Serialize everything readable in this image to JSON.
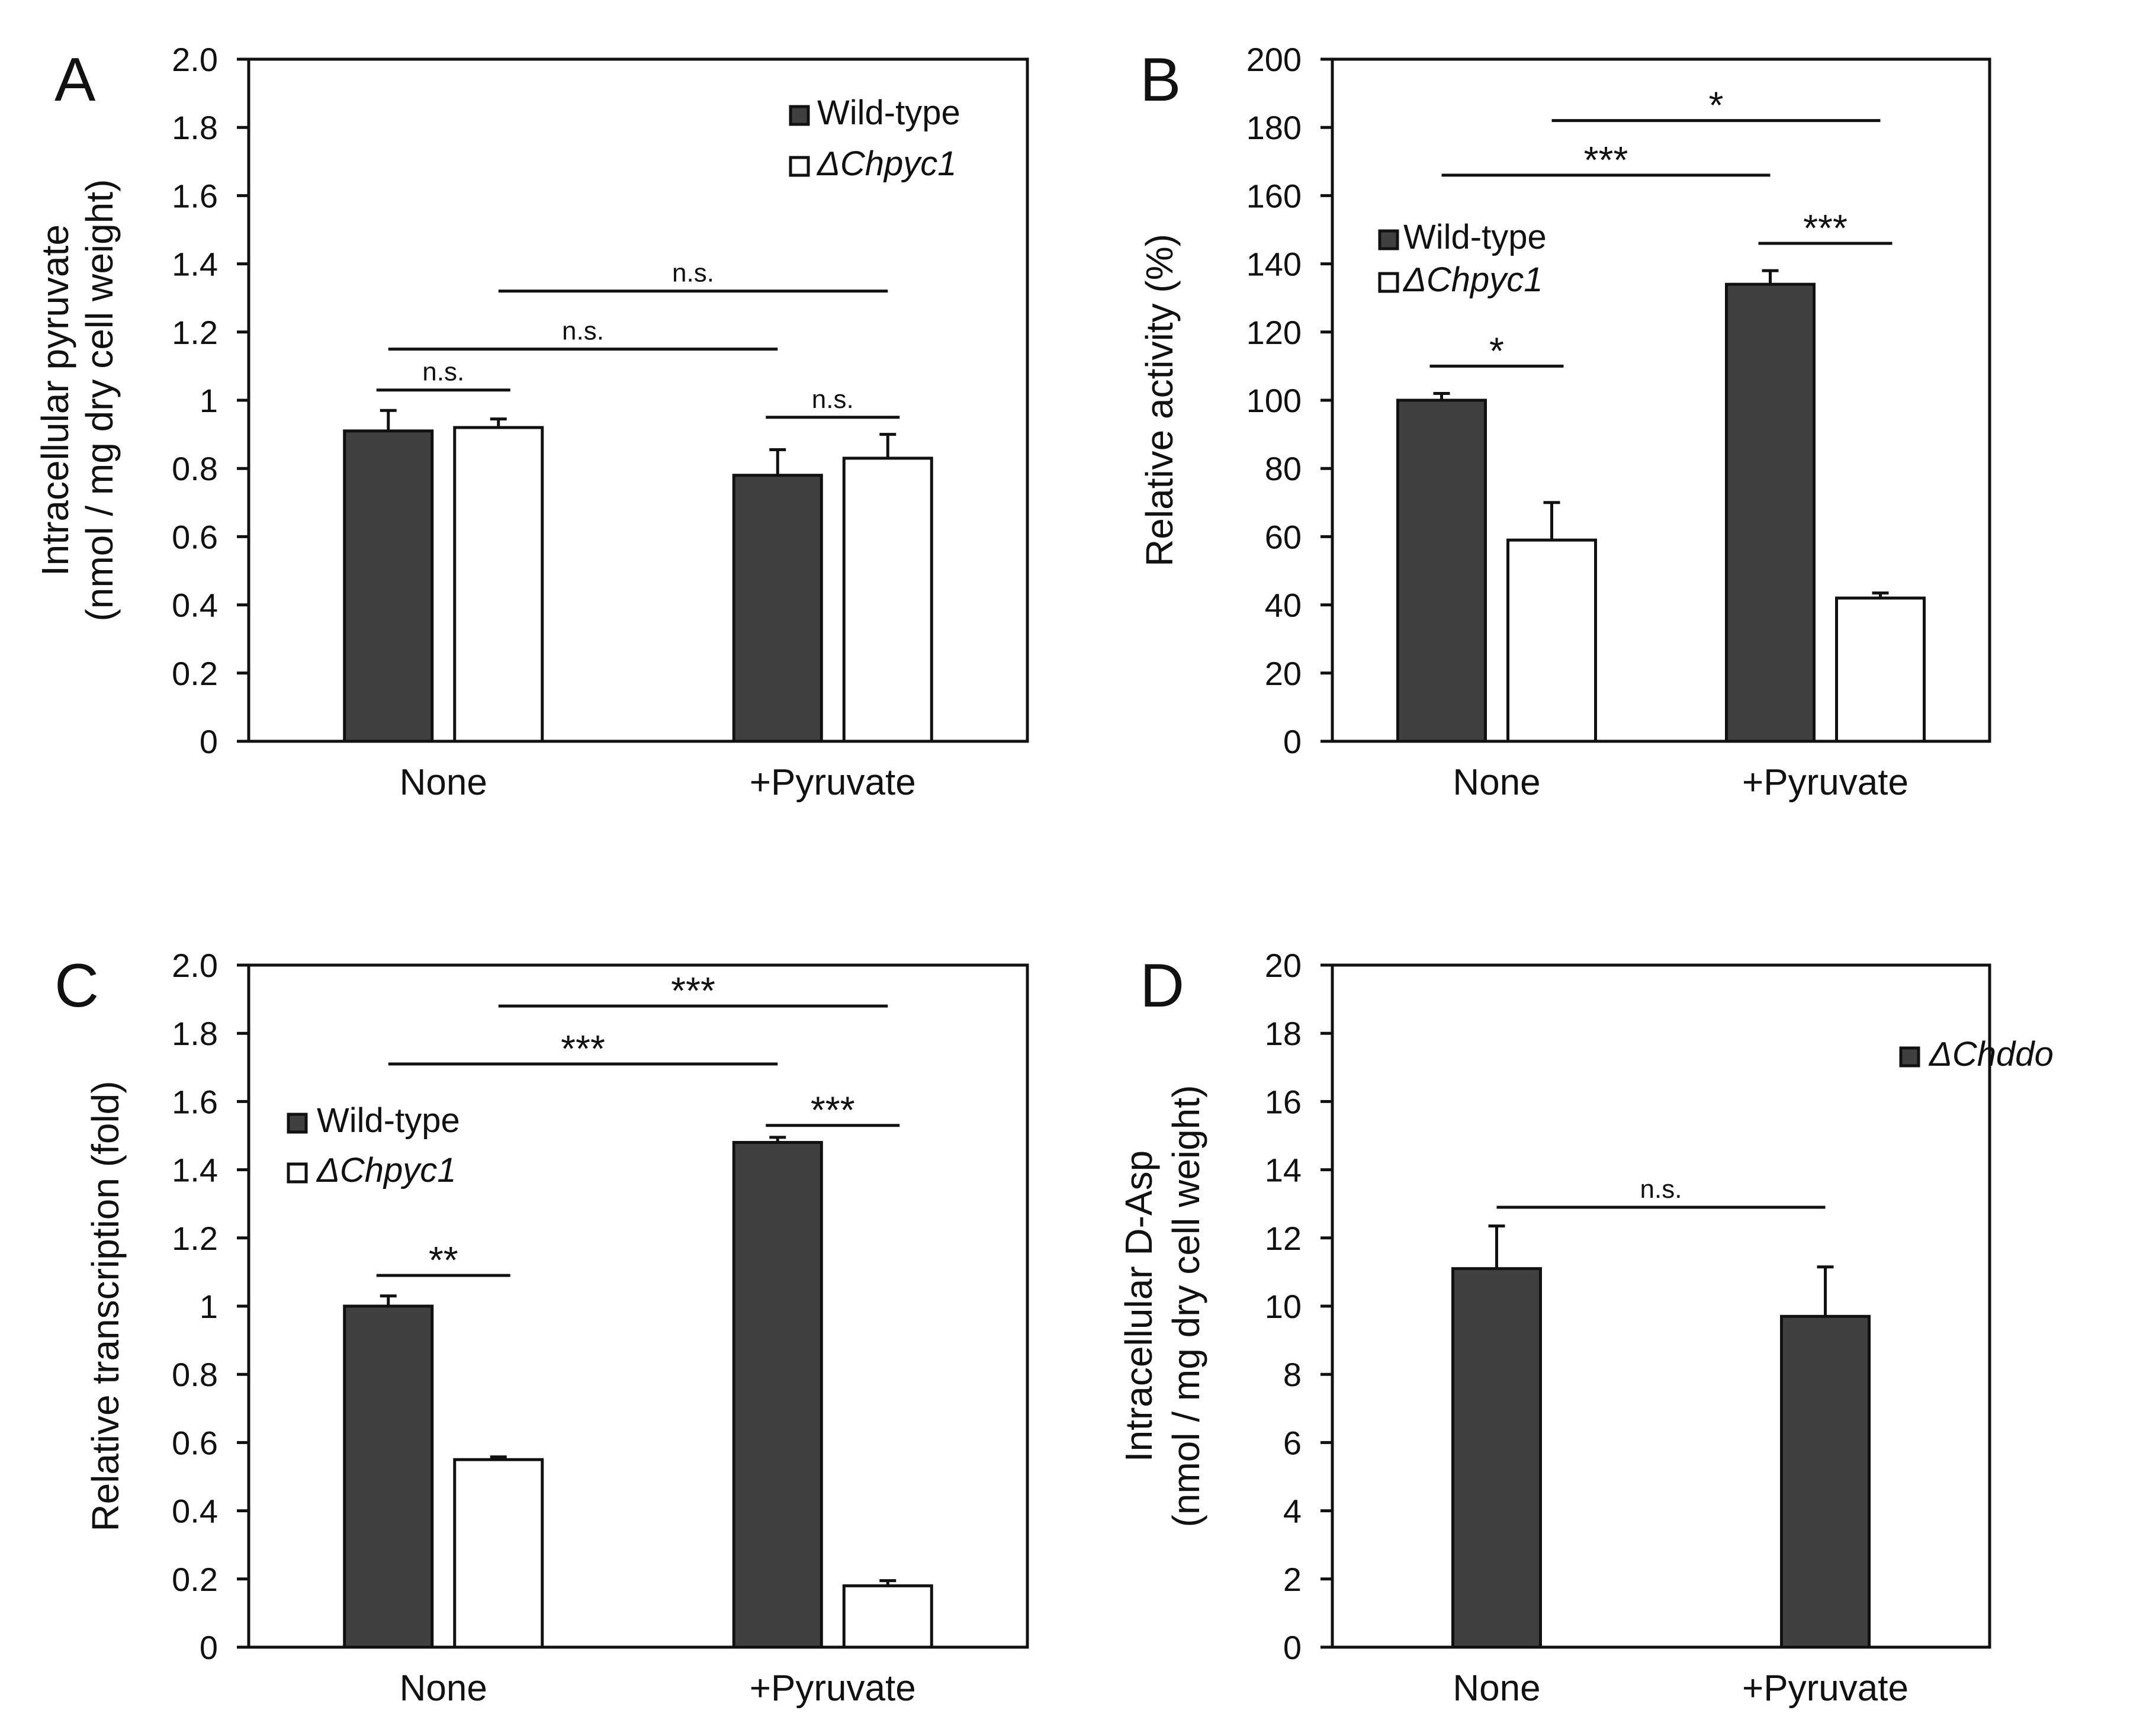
{
  "colors": {
    "wild_type": "#404040",
    "mutant": "#ffffff",
    "stroke": "#111111"
  },
  "chart_data": [
    {
      "id": "A",
      "type": "bar",
      "panel_label": "A",
      "ylabel_lines": [
        "Intracellular pyruvate",
        "(nmol / mg dry cell weight)"
      ],
      "ylim": [
        0,
        2.0
      ],
      "yticks": [
        0,
        0.2,
        0.4,
        0.6,
        0.8,
        1,
        1.2,
        1.4,
        1.6,
        1.8,
        2.0
      ],
      "ytick_labels": [
        "0",
        "0.2",
        "0.4",
        "0.6",
        "0.8",
        "1",
        "1.2",
        "1.4",
        "1.6",
        "1.8",
        "2.0"
      ],
      "categories": [
        "None",
        "+Pyruvate"
      ],
      "series": [
        {
          "name": "Wild-type",
          "italic": false,
          "fill": "wt",
          "values": [
            0.91,
            0.78
          ],
          "errors": [
            0.06,
            0.075
          ]
        },
        {
          "name": "ΔChpyc1",
          "italic": true,
          "fill": "mut",
          "values": [
            0.92,
            0.83
          ],
          "errors": [
            0.025,
            0.07
          ]
        }
      ],
      "legend_position": "top-right",
      "annotations": [
        {
          "text": "n.s.",
          "from": [
            0,
            0
          ],
          "to": [
            0,
            1
          ],
          "y": 1.03
        },
        {
          "text": "n.s.",
          "from": [
            1,
            0
          ],
          "to": [
            1,
            1
          ],
          "y": 0.95
        },
        {
          "text": "n.s.",
          "from": [
            0,
            0
          ],
          "to": [
            1,
            0
          ],
          "y": 1.15
        },
        {
          "text": "n.s.",
          "from": [
            0,
            1
          ],
          "to": [
            1,
            1
          ],
          "y": 1.32
        }
      ]
    },
    {
      "id": "B",
      "type": "bar",
      "panel_label": "B",
      "ylabel_lines": [
        "Relative activity (%)"
      ],
      "ylim": [
        0,
        200
      ],
      "yticks": [
        0,
        20,
        40,
        60,
        80,
        100,
        120,
        140,
        160,
        180,
        200
      ],
      "ytick_labels": [
        "0",
        "20",
        "40",
        "60",
        "80",
        "100",
        "120",
        "140",
        "160",
        "180",
        "200"
      ],
      "categories": [
        "None",
        "+Pyruvate"
      ],
      "series": [
        {
          "name": "Wild-type",
          "italic": false,
          "fill": "wt",
          "values": [
            100,
            134
          ],
          "errors": [
            2,
            4
          ]
        },
        {
          "name": "ΔChpyc1",
          "italic": true,
          "fill": "mut",
          "values": [
            59,
            42
          ],
          "errors": [
            11,
            1.5
          ]
        }
      ],
      "legend_position": "top-left",
      "annotations": [
        {
          "text": "*",
          "from": [
            0,
            0
          ],
          "to": [
            0,
            1
          ],
          "y": 110
        },
        {
          "text": "***",
          "from": [
            1,
            0
          ],
          "to": [
            1,
            1
          ],
          "y": 146
        },
        {
          "text": "***",
          "from": [
            0,
            0
          ],
          "to": [
            1,
            0
          ],
          "y": 166
        },
        {
          "text": "*",
          "from": [
            0,
            1
          ],
          "to": [
            1,
            1
          ],
          "y": 182
        }
      ]
    },
    {
      "id": "C",
      "type": "bar",
      "panel_label": "C",
      "ylabel_lines": [
        "Relative transcription (fold)"
      ],
      "ylim": [
        0,
        2.0
      ],
      "yticks": [
        0,
        0.2,
        0.4,
        0.6,
        0.8,
        1,
        1.2,
        1.4,
        1.6,
        1.8,
        2.0
      ],
      "ytick_labels": [
        "0",
        "0.2",
        "0.4",
        "0.6",
        "0.8",
        "1",
        "1.2",
        "1.4",
        "1.6",
        "1.8",
        "2.0"
      ],
      "categories": [
        "None",
        "+Pyruvate"
      ],
      "series": [
        {
          "name": "Wild-type",
          "italic": false,
          "fill": "wt",
          "values": [
            1.0,
            1.48
          ],
          "errors": [
            0.03,
            0.015
          ]
        },
        {
          "name": "ΔChpyc1",
          "italic": true,
          "fill": "mut",
          "values": [
            0.55,
            0.18
          ],
          "errors": [
            0.008,
            0.015
          ]
        }
      ],
      "legend_position": "top-left",
      "annotations": [
        {
          "text": "**",
          "from": [
            0,
            0
          ],
          "to": [
            0,
            1
          ],
          "y": 1.09
        },
        {
          "text": "***",
          "from": [
            1,
            0
          ],
          "to": [
            1,
            1
          ],
          "y": 1.53
        },
        {
          "text": "***",
          "from": [
            0,
            0
          ],
          "to": [
            1,
            0
          ],
          "y": 1.71
        },
        {
          "text": "***",
          "from": [
            0,
            1
          ],
          "to": [
            1,
            1
          ],
          "y": 1.88
        }
      ]
    },
    {
      "id": "D",
      "type": "bar",
      "panel_label": "D",
      "ylabel_lines": [
        "Intracellular D-Asp",
        "(nmol / mg dry cell weight)"
      ],
      "ylim": [
        0,
        20
      ],
      "yticks": [
        0,
        2,
        4,
        6,
        8,
        10,
        12,
        14,
        16,
        18,
        20
      ],
      "ytick_labels": [
        "0",
        "2",
        "4",
        "6",
        "8",
        "10",
        "12",
        "14",
        "16",
        "18",
        "20"
      ],
      "categories": [
        "None",
        "+Pyruvate"
      ],
      "series": [
        {
          "name": "ΔChddo",
          "italic": true,
          "fill": "wt",
          "values": [
            11.1,
            9.7
          ],
          "errors": [
            1.25,
            1.45
          ]
        }
      ],
      "legend_position": "top-right",
      "annotations": [
        {
          "text": "n.s.",
          "from": [
            0,
            0
          ],
          "to": [
            1,
            0
          ],
          "y": 12.9
        }
      ]
    }
  ]
}
